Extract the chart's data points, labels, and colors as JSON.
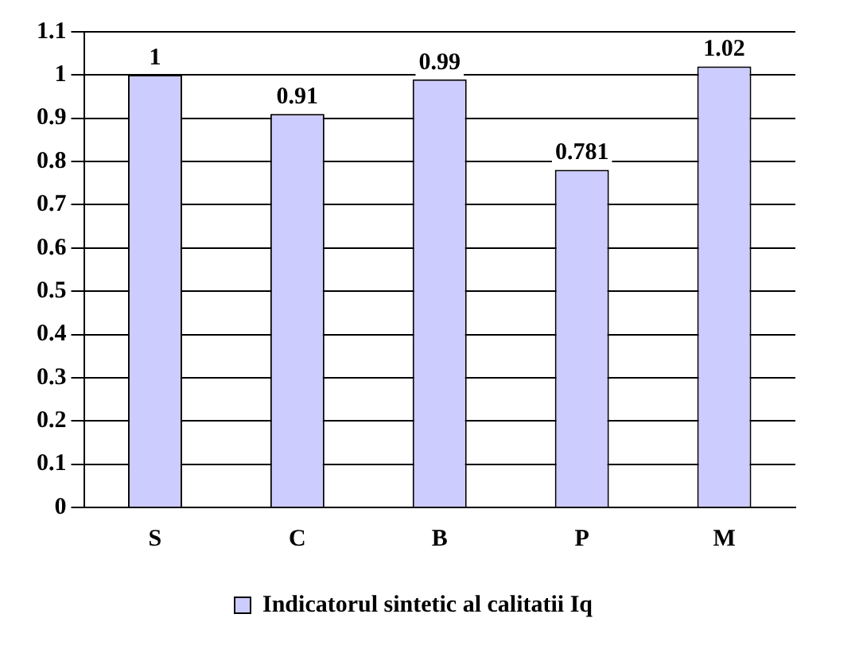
{
  "chart_data": {
    "type": "bar",
    "categories": [
      "S",
      "C",
      "B",
      "P",
      "M"
    ],
    "series": [
      {
        "name": "Indicatorul sintetic al calitatii Iq",
        "color": "#ccccff",
        "values": [
          1,
          0.91,
          0.99,
          0.781,
          1.02
        ]
      }
    ],
    "ylim": [
      0,
      1.1
    ],
    "yticks": [
      0,
      0.1,
      0.2,
      0.3,
      0.4,
      0.5,
      0.6,
      0.7,
      0.8,
      0.9,
      1,
      1.1
    ],
    "grid": "y",
    "legend": "bottom",
    "data_labels": true
  }
}
